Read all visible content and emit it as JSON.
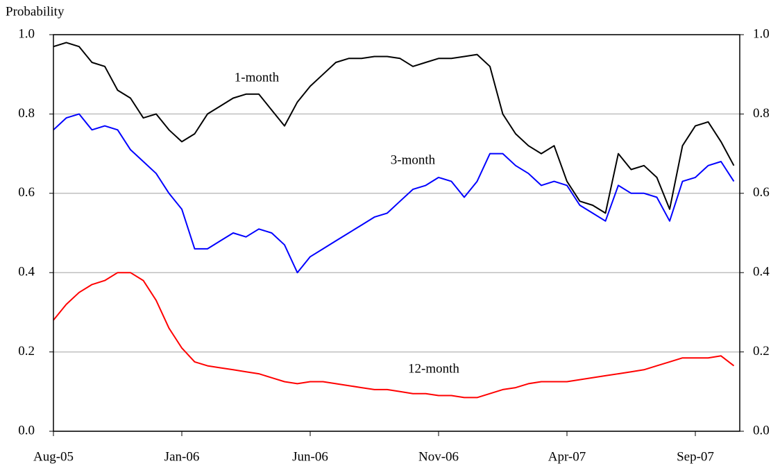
{
  "chart_data": {
    "type": "line",
    "y_label": "Probability",
    "annotations": [
      "1-month",
      "3-month",
      "12-month"
    ],
    "categories": [
      "Aug-05",
      null,
      null,
      null,
      null,
      null,
      null,
      null,
      null,
      null,
      "Jan-06",
      null,
      null,
      null,
      null,
      null,
      null,
      null,
      null,
      null,
      "Jun-06",
      null,
      null,
      null,
      null,
      null,
      null,
      null,
      null,
      null,
      "Nov-06",
      null,
      null,
      null,
      null,
      null,
      null,
      null,
      null,
      null,
      "Apr-07",
      null,
      null,
      null,
      null,
      null,
      null,
      null,
      null,
      null,
      "Sep-07",
      null,
      null,
      null
    ],
    "series": [
      {
        "name": "1-month",
        "color": "#000000",
        "values": [
          0.97,
          0.98,
          0.97,
          0.93,
          0.92,
          0.86,
          0.84,
          0.79,
          0.8,
          0.76,
          0.73,
          0.75,
          0.8,
          0.82,
          0.84,
          0.85,
          0.85,
          0.81,
          0.77,
          0.83,
          0.87,
          0.9,
          0.93,
          0.94,
          0.94,
          0.945,
          0.945,
          0.94,
          0.92,
          0.93,
          0.94,
          0.94,
          0.945,
          0.95,
          0.92,
          0.8,
          0.75,
          0.72,
          0.7,
          0.72,
          0.63,
          0.58,
          0.57,
          0.55,
          0.7,
          0.66,
          0.67,
          0.64,
          0.56,
          0.72,
          0.77,
          0.78,
          0.73,
          0.67
        ]
      },
      {
        "name": "3-month",
        "color": "#0000ff",
        "values": [
          0.76,
          0.79,
          0.8,
          0.76,
          0.77,
          0.76,
          0.71,
          0.68,
          0.65,
          0.6,
          0.56,
          0.46,
          0.46,
          0.48,
          0.5,
          0.49,
          0.51,
          0.5,
          0.47,
          0.4,
          0.44,
          0.46,
          0.48,
          0.5,
          0.52,
          0.54,
          0.55,
          0.58,
          0.61,
          0.62,
          0.64,
          0.63,
          0.59,
          0.63,
          0.7,
          0.7,
          0.67,
          0.65,
          0.62,
          0.63,
          0.62,
          0.57,
          0.55,
          0.53,
          0.62,
          0.6,
          0.6,
          0.59,
          0.53,
          0.63,
          0.64,
          0.67,
          0.68,
          0.63
        ]
      },
      {
        "name": "12-month",
        "color": "#ff0000",
        "values": [
          0.28,
          0.32,
          0.35,
          0.37,
          0.38,
          0.4,
          0.4,
          0.38,
          0.33,
          0.26,
          0.21,
          0.175,
          0.165,
          0.16,
          0.155,
          0.15,
          0.145,
          0.135,
          0.125,
          0.12,
          0.125,
          0.125,
          0.12,
          0.115,
          0.11,
          0.105,
          0.105,
          0.1,
          0.095,
          0.095,
          0.09,
          0.09,
          0.085,
          0.085,
          0.095,
          0.105,
          0.11,
          0.12,
          0.125,
          0.125,
          0.125,
          0.13,
          0.135,
          0.14,
          0.145,
          0.15,
          0.155,
          0.165,
          0.175,
          0.185,
          0.185,
          0.185,
          0.19,
          0.165
        ]
      }
    ],
    "ylim": [
      0,
      1
    ],
    "yticks": [
      {
        "value": 0,
        "label": "0.0"
      },
      0.2,
      0.4,
      0.6,
      0.8,
      {
        "value": 1,
        "label": "1.0"
      }
    ],
    "y2lim": [
      0,
      1
    ],
    "y2ticks": [
      {
        "value": 0,
        "label": "0.0"
      },
      0.2,
      0.4,
      0.6,
      0.8,
      {
        "value": 1,
        "label": "1.0"
      }
    ],
    "grid": true
  }
}
